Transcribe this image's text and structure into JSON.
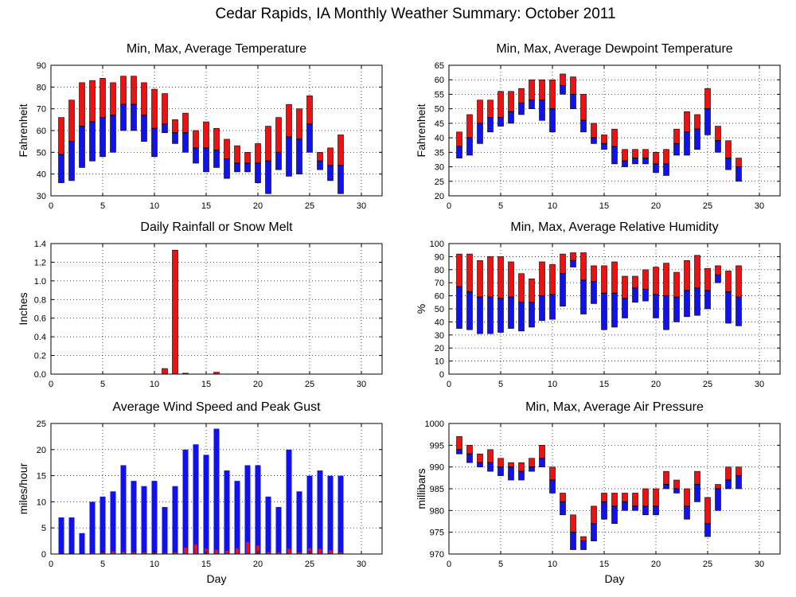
{
  "main_title": "Cedar Rapids, IA Monthly Weather Summary: October 2011",
  "colors": {
    "max_bar": "#ee1111",
    "min_bar": "#1111ee",
    "avg_line": "#000000"
  },
  "chart_data": [
    {
      "id": "temperature",
      "type": "bar",
      "style": "range_split",
      "title": "Min, Max, Average Temperature",
      "xlabel": "",
      "ylabel": "Fahrenheit",
      "xlim": [
        0,
        32
      ],
      "ylim": [
        30,
        90
      ],
      "xticks": [
        0,
        5,
        10,
        15,
        20,
        25,
        30
      ],
      "yticks": [
        30,
        40,
        50,
        60,
        70,
        80,
        90
      ],
      "x": [
        1,
        2,
        3,
        4,
        5,
        6,
        7,
        8,
        9,
        10,
        11,
        12,
        13,
        14,
        15,
        16,
        17,
        18,
        19,
        20,
        21,
        22,
        23,
        24,
        25,
        26,
        27,
        28
      ],
      "min": [
        36,
        37,
        43,
        46,
        48,
        50,
        60,
        60,
        55,
        48,
        59,
        54,
        50,
        45,
        41,
        43,
        38,
        41,
        41,
        36,
        31,
        42,
        39,
        40,
        50,
        42,
        37,
        31
      ],
      "max": [
        66,
        74,
        82,
        83,
        84,
        82,
        85,
        85,
        82,
        79,
        77,
        65,
        68,
        60,
        64,
        61,
        56,
        53,
        50,
        54,
        62,
        66,
        72,
        70,
        76,
        50,
        52,
        58
      ],
      "avg": [
        49,
        55,
        62,
        64,
        66,
        67,
        72,
        72,
        67,
        61,
        63,
        59,
        59,
        52,
        52,
        51,
        47,
        45,
        45,
        45,
        46,
        50,
        57,
        56,
        63,
        46,
        44,
        44
      ]
    },
    {
      "id": "dewpoint",
      "type": "bar",
      "style": "range_split",
      "title": "Min, Max, Average Dewpoint Temperature",
      "xlabel": "",
      "ylabel": "Fahrenheit",
      "xlim": [
        0,
        32
      ],
      "ylim": [
        20,
        65
      ],
      "xticks": [
        0,
        5,
        10,
        15,
        20,
        25,
        30
      ],
      "yticks": [
        20,
        25,
        30,
        35,
        40,
        45,
        50,
        55,
        60,
        65
      ],
      "x": [
        1,
        2,
        3,
        4,
        5,
        6,
        7,
        8,
        9,
        10,
        11,
        12,
        13,
        14,
        15,
        16,
        17,
        18,
        19,
        20,
        21,
        22,
        23,
        24,
        25,
        26,
        27,
        28
      ],
      "min": [
        33,
        34,
        38,
        42,
        44,
        45,
        48,
        50,
        46,
        42,
        55,
        50,
        42,
        38,
        36,
        31,
        30,
        31,
        31,
        28,
        27,
        34,
        34,
        36,
        41,
        35,
        29,
        25
      ],
      "max": [
        42,
        48,
        53,
        53,
        56,
        56,
        57,
        60,
        60,
        60,
        62,
        61,
        55,
        45,
        41,
        43,
        36,
        36,
        36,
        35,
        36,
        43,
        49,
        48,
        57,
        44,
        39,
        33
      ],
      "avg": [
        37,
        40,
        45,
        47,
        47,
        49,
        52,
        53,
        53,
        50,
        58,
        55,
        46,
        40,
        38,
        37,
        32,
        33,
        33,
        31,
        31,
        38,
        42,
        43,
        50,
        39,
        33,
        30
      ]
    },
    {
      "id": "rainfall",
      "type": "bar",
      "style": "single",
      "title": "Daily Rainfall or Snow Melt",
      "xlabel": "",
      "ylabel": "Inches",
      "xlim": [
        0,
        32
      ],
      "ylim": [
        0,
        1.4
      ],
      "xticks": [
        0,
        5,
        10,
        15,
        20,
        25,
        30
      ],
      "yticks": [
        0.0,
        0.2,
        0.4,
        0.6,
        0.8,
        1.0,
        1.2,
        1.4
      ],
      "ytick_labels": [
        "0.0",
        "0.2",
        "0.4",
        "0.6",
        "0.8",
        "1.0",
        "1.2",
        "1.4"
      ],
      "x": [
        11,
        12,
        13,
        16
      ],
      "values": [
        0.06,
        1.33,
        0.01,
        0.02
      ]
    },
    {
      "id": "relative_humidity",
      "type": "bar",
      "style": "range_split",
      "title": "Min, Max, Average Relative Humidity",
      "xlabel": "",
      "ylabel": "%",
      "xlim": [
        0,
        32
      ],
      "ylim": [
        0,
        100
      ],
      "xticks": [
        0,
        5,
        10,
        15,
        20,
        25,
        30
      ],
      "yticks": [
        0,
        10,
        20,
        30,
        40,
        50,
        60,
        70,
        80,
        90,
        100
      ],
      "x": [
        1,
        2,
        3,
        4,
        5,
        6,
        7,
        8,
        9,
        10,
        11,
        12,
        13,
        14,
        15,
        16,
        17,
        18,
        19,
        20,
        21,
        22,
        23,
        24,
        25,
        26,
        27,
        28
      ],
      "min": [
        35,
        34,
        31,
        31,
        32,
        35,
        33,
        36,
        41,
        42,
        52,
        82,
        46,
        54,
        34,
        36,
        43,
        55,
        56,
        43,
        34,
        40,
        44,
        45,
        50,
        70,
        39,
        37
      ],
      "max": [
        92,
        92,
        87,
        90,
        90,
        86,
        77,
        73,
        86,
        84,
        92,
        93,
        93,
        83,
        83,
        86,
        75,
        75,
        80,
        82,
        85,
        78,
        87,
        91,
        81,
        83,
        79,
        83
      ],
      "avg": [
        67,
        63,
        59,
        59,
        58,
        59,
        55,
        55,
        60,
        61,
        77,
        87,
        72,
        71,
        62,
        62,
        58,
        66,
        65,
        61,
        60,
        59,
        64,
        66,
        64,
        76,
        63,
        59
      ]
    },
    {
      "id": "wind",
      "type": "bar",
      "style": "stacked_pair",
      "title": "Average Wind Speed and Peak Gust",
      "xlabel": "Day",
      "ylabel": "miles/hour",
      "xlim": [
        0,
        32
      ],
      "ylim": [
        0,
        25
      ],
      "xticks": [
        0,
        5,
        10,
        15,
        20,
        25,
        30
      ],
      "yticks": [
        0,
        5,
        10,
        15,
        20,
        25
      ],
      "x": [
        1,
        2,
        3,
        4,
        5,
        6,
        7,
        8,
        9,
        10,
        11,
        12,
        13,
        14,
        15,
        16,
        17,
        18,
        19,
        20,
        21,
        22,
        23,
        24,
        25,
        26,
        27,
        28
      ],
      "peak_gust": [
        7,
        7,
        4,
        10,
        11,
        12,
        17,
        14,
        13,
        14,
        9,
        13,
        20,
        21,
        19,
        24,
        16,
        14,
        17,
        17,
        11,
        9,
        20,
        12,
        15,
        16,
        15,
        15
      ],
      "average_speed": [
        0.1,
        0.1,
        0.1,
        0.2,
        0.3,
        0.5,
        0.4,
        0.3,
        0.3,
        0.3,
        0.2,
        0.3,
        1.2,
        1.8,
        1.0,
        0.8,
        0.6,
        1.1,
        2.3,
        1.6,
        0.4,
        0.3,
        1.0,
        0.3,
        1.1,
        1.0,
        0.7,
        0.3
      ]
    },
    {
      "id": "air_pressure",
      "type": "bar",
      "style": "range_split",
      "title": "Min, Max, Average Air Pressure",
      "xlabel": "Day",
      "ylabel": "millibars",
      "xlim": [
        0,
        32
      ],
      "ylim": [
        970,
        1000
      ],
      "xticks": [
        0,
        5,
        10,
        15,
        20,
        25,
        30
      ],
      "yticks": [
        970,
        975,
        980,
        985,
        990,
        995,
        1000
      ],
      "x": [
        1,
        2,
        3,
        4,
        5,
        6,
        7,
        8,
        9,
        10,
        11,
        12,
        13,
        14,
        15,
        16,
        17,
        18,
        19,
        20,
        21,
        22,
        23,
        24,
        25,
        26,
        27,
        28
      ],
      "min": [
        993,
        991,
        990,
        989,
        988,
        987,
        987,
        989,
        990,
        984,
        979,
        971,
        971,
        973,
        978,
        977,
        980,
        980,
        979,
        979,
        985,
        984,
        978,
        982,
        974,
        980,
        985,
        985
      ],
      "max": [
        997,
        995,
        993,
        994,
        992,
        991,
        991,
        992,
        995,
        990,
        984,
        979,
        974,
        981,
        984,
        984,
        984,
        984,
        985,
        985,
        989,
        987,
        985,
        989,
        983,
        986,
        990,
        990
      ],
      "avg": [
        994,
        993,
        991,
        991,
        990,
        990,
        989,
        990,
        992,
        987,
        982,
        975,
        973,
        977,
        982,
        981,
        982,
        981,
        981,
        981,
        986,
        985,
        981,
        986,
        977,
        985,
        987,
        988
      ]
    }
  ]
}
